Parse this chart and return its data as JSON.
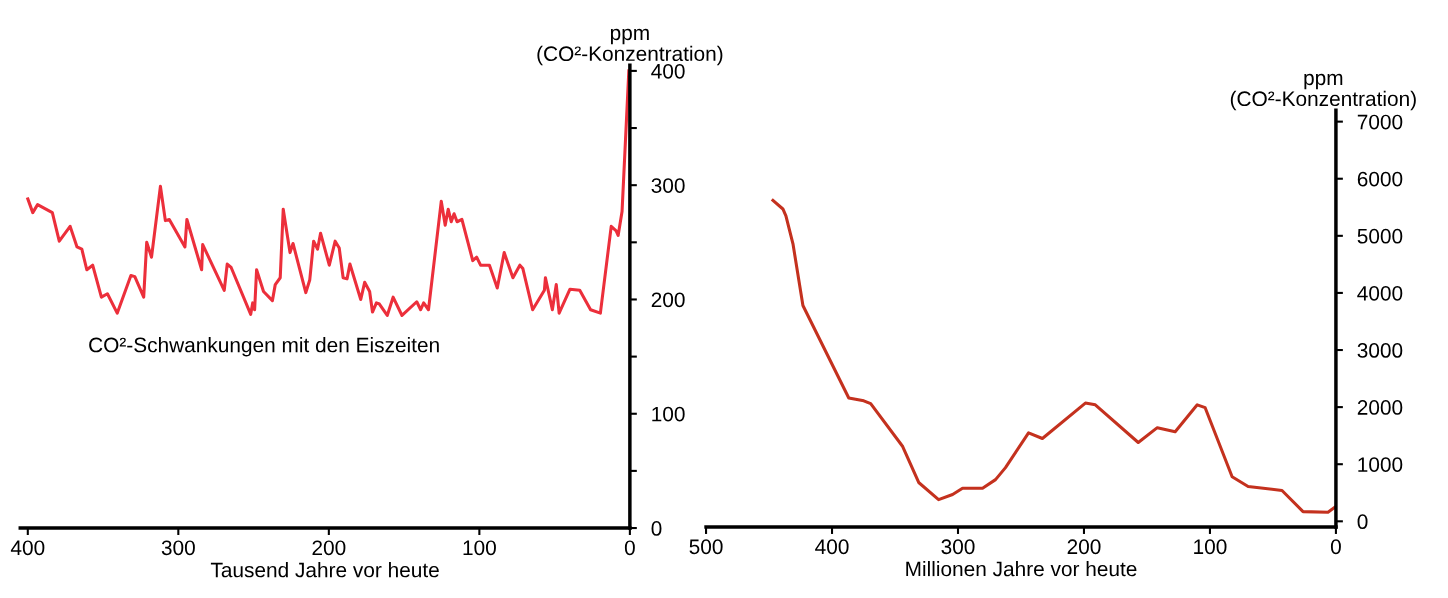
{
  "chart_data": [
    {
      "type": "line",
      "xlabel": "Tausend Jahre vor heute",
      "ylabel": "ppm\n(CO²-Konzentration)",
      "annotations": [
        "CO²-Schwankungen mit den Eiszeiten"
      ],
      "x": [
        400,
        396.7,
        393.5,
        383.7,
        379.1,
        371.9,
        367.3,
        364.1,
        360.8,
        356.9,
        351.1,
        347.1,
        340.6,
        331.5,
        328.9,
        323,
        321,
        317.8,
        311.9,
        308.6,
        306,
        295.6,
        294.3,
        284.5,
        283.8,
        269.5,
        267.5,
        264.9,
        251.9,
        250.6,
        249.3,
        248,
        243.4,
        237.5,
        235.6,
        232.3,
        230.3,
        225.8,
        223.8,
        215.3,
        212.7,
        210.1,
        207.5,
        205.5,
        199.7,
        195.8,
        193.1,
        190.5,
        187.9,
        186,
        178.8,
        176.2,
        172.9,
        171,
        168.4,
        166.4,
        161.2,
        157.3,
        151.4,
        141.6,
        139,
        137,
        133.8,
        125.3,
        122.7,
        120.7,
        118.7,
        116.8,
        114.8,
        111.6,
        104.4,
        101.8,
        99.2,
        93.3,
        88.1,
        83.5,
        77.7,
        73.1,
        71.1,
        64.6,
        56.8,
        56.1,
        51.5,
        48.9,
        47,
        39.8,
        33.3,
        26.1,
        19.6,
        12.4,
        9.1,
        7.8,
        5.2,
        0.7
      ],
      "series": [
        {
          "color": "#ec2f3b",
          "values": [
            288,
            276,
            283,
            276,
            251,
            264,
            246,
            244,
            226,
            230,
            202,
            205,
            188,
            221,
            220,
            202,
            250,
            237,
            299,
            269,
            270,
            246,
            270,
            226,
            248,
            208,
            231,
            228,
            187,
            197,
            191,
            226,
            207,
            199,
            213,
            219,
            279,
            241,
            249,
            206,
            217,
            251,
            244,
            258,
            230,
            251,
            245,
            219,
            218,
            231,
            200,
            215,
            207,
            189,
            197,
            196,
            186,
            202,
            186,
            198,
            191,
            197,
            191,
            286,
            265,
            279,
            268,
            275,
            268,
            270,
            234,
            237,
            230,
            230,
            210,
            241,
            219,
            230,
            227,
            191,
            208,
            219,
            191,
            213,
            188,
            209,
            208,
            191,
            188,
            264,
            260,
            256,
            277,
            400
          ]
        }
      ],
      "xlim": [
        405,
        0
      ],
      "xticks": [
        400,
        300,
        200,
        100,
        0
      ],
      "ylim": [
        0,
        405
      ],
      "yticks": [
        0,
        {
          "value": 50,
          "label": null
        },
        100,
        {
          "value": 150,
          "label": null
        },
        200,
        {
          "value": 250,
          "label": null
        },
        300,
        {
          "value": 350,
          "label": null
        },
        400
      ],
      "grid": false,
      "legend": false,
      "marker": "none",
      "line_style": "solid"
    },
    {
      "type": "line",
      "xlabel": "Millionen Jahre vor heute",
      "ylabel": "ppm\n(CO²-Konzentration)",
      "x": [
        446.9,
        439,
        436.6,
        431,
        423.1,
        386.7,
        374.8,
        369.3,
        343.9,
        331.2,
        315.4,
        304.3,
        296.4,
        280.5,
        270.2,
        262.3,
        244,
        233,
        198.9,
        191,
        156.9,
        141.8,
        127.6,
        110.1,
        103.8,
        82.4,
        69.7,
        42.8,
        26.1,
        6.3,
        0
      ],
      "series": [
        {
          "color": "#c4311e",
          "values": [
            5620,
            5470,
            5350,
            4860,
            3780,
            2160,
            2110,
            2060,
            1310,
            680,
            380,
            470,
            580,
            580,
            730,
            940,
            1550,
            1450,
            2070,
            2040,
            1380,
            1640,
            1570,
            2040,
            1990,
            780,
            610,
            540,
            170,
            160,
            260
          ]
        }
      ],
      "xlim": [
        500,
        0
      ],
      "xticks": [
        500,
        400,
        300,
        200,
        100,
        0
      ],
      "ylim": [
        -100,
        7200
      ],
      "yticks": [
        0,
        1000,
        2000,
        3000,
        4000,
        5000,
        6000,
        7000
      ],
      "grid": false,
      "legend": false,
      "marker": "none",
      "line_style": "solid"
    }
  ]
}
